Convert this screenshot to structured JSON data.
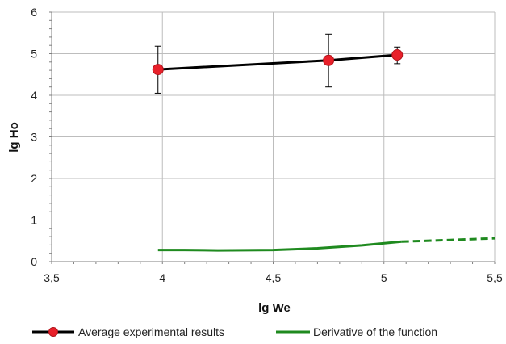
{
  "chart_data": {
    "type": "line",
    "xlabel": "lg We",
    "ylabel": "lg Ho",
    "xlim": [
      3.5,
      5.5
    ],
    "ylim": [
      0,
      6
    ],
    "xticks": [
      3.5,
      4,
      4.5,
      5,
      5.5
    ],
    "xtick_labels": [
      "3,5",
      "4",
      "4,5",
      "5",
      "5,5"
    ],
    "yticks": [
      0,
      1,
      2,
      3,
      4,
      5,
      6
    ],
    "ytick_labels": [
      "0",
      "1",
      "2",
      "3",
      "4",
      "5",
      "6"
    ],
    "grid": true,
    "legend_position": "bottom",
    "series": [
      {
        "name": "Average experimental results",
        "color": "#000000",
        "marker_color": "#e8202a",
        "x": [
          3.98,
          4.75,
          5.06
        ],
        "y": [
          4.62,
          4.84,
          4.97
        ],
        "error_low": [
          4.05,
          4.2,
          4.76
        ],
        "error_high": [
          5.18,
          5.47,
          5.16
        ]
      },
      {
        "name": "Derivative of the function",
        "color": "#1f8a1f",
        "x": [
          3.98,
          4.1,
          4.25,
          4.5,
          4.7,
          4.9,
          5.08
        ],
        "y": [
          0.28,
          0.28,
          0.27,
          0.28,
          0.32,
          0.39,
          0.48
        ],
        "extrapolation_x": [
          5.08,
          5.3,
          5.5
        ],
        "extrapolation_y": [
          0.48,
          0.52,
          0.56
        ]
      }
    ]
  }
}
